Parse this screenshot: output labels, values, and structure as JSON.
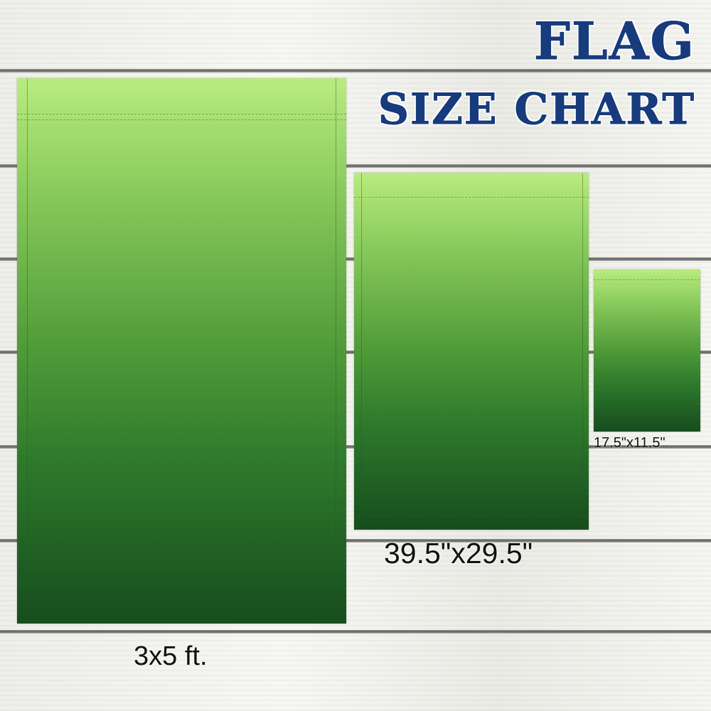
{
  "title": {
    "line1": "FLAG",
    "line2": "SIZE CHART",
    "color": "#173b7c"
  },
  "flags": [
    {
      "label": "3x5 ft."
    },
    {
      "label": "39.5\"x29.5\""
    },
    {
      "label": "17.5\"x11.5\""
    }
  ],
  "colors": {
    "flag_top": "#b9ec7e",
    "flag_bottom": "#164d1e",
    "background": "#f1f1ee"
  }
}
